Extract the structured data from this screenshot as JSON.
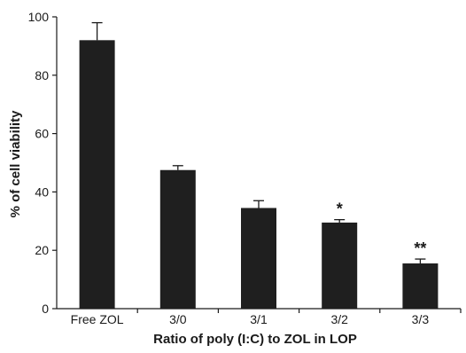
{
  "chart_data": {
    "type": "bar",
    "title": "",
    "xlabel": "Ratio of poly (I:C) to ZOL in LOP",
    "ylabel": "% of cell viability",
    "categories": [
      "Free ZOL",
      "3/0",
      "3/1",
      "3/2",
      "3/3"
    ],
    "values": [
      92,
      47.5,
      34.5,
      29.5,
      15.5
    ],
    "errors": [
      6,
      1.5,
      2.5,
      1,
      1.5
    ],
    "annotations": [
      "",
      "",
      "",
      "*",
      "**"
    ],
    "ylim": [
      0,
      100
    ],
    "yticks": [
      0,
      20,
      40,
      60,
      80,
      100
    ],
    "grid": false,
    "bar_color": "#1f1f1f"
  }
}
